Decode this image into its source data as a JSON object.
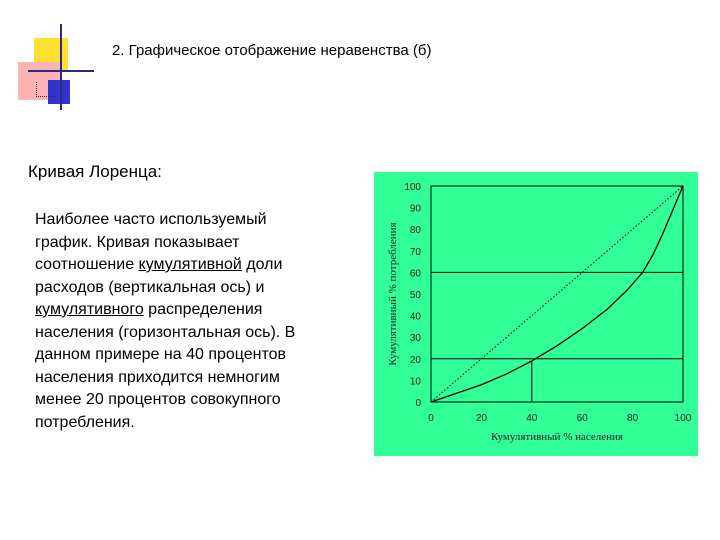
{
  "slide": {
    "title": "2. Графическое отображение неравенства (б)",
    "subtitle": "Кривая Лоренца:",
    "body_lines": [
      [
        {
          "t": "Наиболее часто используемый"
        }
      ],
      [
        {
          "t": "график. Кривая показывает"
        }
      ],
      [
        {
          "t": "соотношение "
        },
        {
          "t": "кумулятивной",
          "u": true
        },
        {
          "t": " доли"
        }
      ],
      [
        {
          "t": "расходов (вертикальная ось) и"
        }
      ],
      [
        {
          "t": "кумулятивного",
          "u": true
        },
        {
          "t": " распределения"
        }
      ],
      [
        {
          "t": "населения (горизонтальная ось). В"
        }
      ],
      [
        {
          "t": "данном примере на 40 процентов"
        }
      ],
      [
        {
          "t": "населения приходится немногим"
        }
      ],
      [
        {
          "t": "менее 20 процентов совокупного"
        }
      ],
      [
        {
          "t": "потребления."
        }
      ]
    ]
  },
  "colors": {
    "chart_bg": "#33FF99",
    "deco_yellow": "#FFE033",
    "deco_pink": "#FF9B9B",
    "deco_blue": "#3333CC",
    "line": "#000000"
  },
  "chart_data": {
    "type": "line",
    "title": "",
    "xlabel": "Кумулятивный % населения",
    "ylabel": "Кумулятивный % потребления",
    "x_ticks": [
      "0",
      "20",
      "40",
      "60",
      "80",
      "100"
    ],
    "y_ticks": [
      "0",
      "10",
      "20",
      "30",
      "40",
      "50",
      "60",
      "70",
      "80",
      "90",
      "100"
    ],
    "xlim": [
      0,
      100
    ],
    "ylim": [
      0,
      100
    ],
    "grid_y_at": [
      20,
      60,
      100
    ],
    "series": [
      {
        "style": "solid",
        "x": [
          0,
          10,
          20,
          30,
          40,
          50,
          60,
          70,
          78,
          84,
          88,
          92,
          96,
          100
        ],
        "y": [
          0,
          4,
          8,
          13,
          19,
          26,
          34,
          43,
          52,
          60,
          68,
          78,
          89,
          100
        ]
      },
      {
        "style": "dotted",
        "x": [
          0,
          100
        ],
        "y": [
          0,
          100
        ]
      }
    ],
    "marker": {
      "x": 40,
      "y": 19
    }
  }
}
